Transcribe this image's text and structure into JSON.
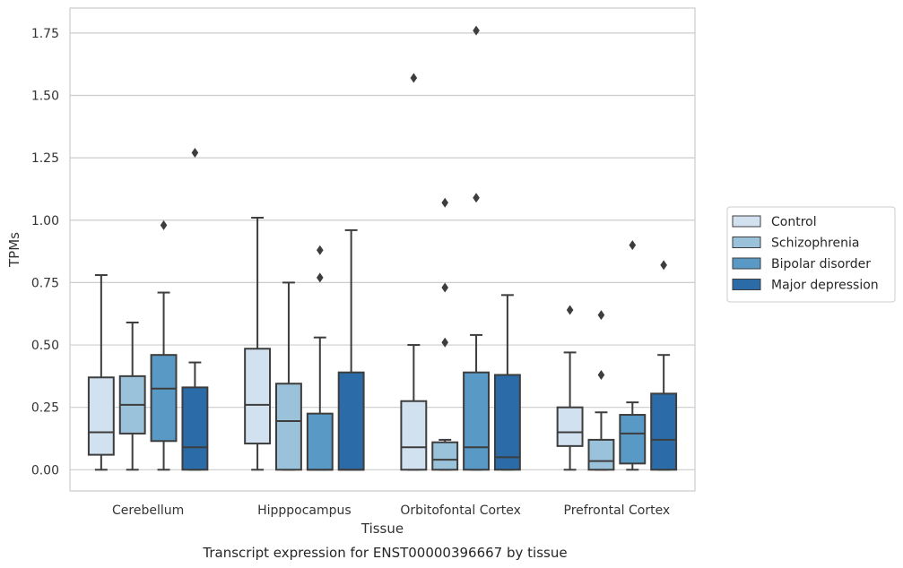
{
  "chart_data": {
    "type": "boxplot",
    "xlabel": "Tissue",
    "ylabel": "TPMs",
    "caption": "Transcript expression for ENST00000396667 by tissue",
    "ylim": [
      -0.085,
      1.85
    ],
    "yticks": [
      "0.00",
      "0.25",
      "0.50",
      "0.75",
      "1.00",
      "1.25",
      "1.50",
      "1.75"
    ],
    "grid": "horizontal",
    "legend_position": "right",
    "categories": [
      "Cerebellum",
      "Hipppocampus",
      "Orbitofontal Cortex",
      "Prefrontal Cortex"
    ],
    "series": [
      {
        "name": "Control",
        "color": "#d2e1f0",
        "boxes": [
          {
            "whislo": 0.0,
            "q1": 0.06,
            "med": 0.15,
            "q3": 0.37,
            "whishi": 0.78,
            "fliers": []
          },
          {
            "whislo": 0.0,
            "q1": 0.105,
            "med": 0.26,
            "q3": 0.485,
            "whishi": 1.01,
            "fliers": []
          },
          {
            "whislo": 0.0,
            "q1": 0.0,
            "med": 0.09,
            "q3": 0.275,
            "whishi": 0.5,
            "fliers": [
              1.57
            ]
          },
          {
            "whislo": 0.0,
            "q1": 0.095,
            "med": 0.15,
            "q3": 0.25,
            "whishi": 0.47,
            "fliers": [
              0.64
            ]
          }
        ]
      },
      {
        "name": "Schizophrenia",
        "color": "#9bc2db",
        "boxes": [
          {
            "whislo": 0.0,
            "q1": 0.145,
            "med": 0.26,
            "q3": 0.375,
            "whishi": 0.59,
            "fliers": []
          },
          {
            "whislo": 0.0,
            "q1": 0.0,
            "med": 0.195,
            "q3": 0.345,
            "whishi": 0.75,
            "fliers": []
          },
          {
            "whislo": 0.0,
            "q1": 0.0,
            "med": 0.04,
            "q3": 0.11,
            "whishi": 0.12,
            "fliers": [
              0.51,
              0.73,
              1.07
            ]
          },
          {
            "whislo": 0.0,
            "q1": 0.0,
            "med": 0.035,
            "q3": 0.12,
            "whishi": 0.23,
            "fliers": [
              0.38,
              0.62
            ]
          }
        ]
      },
      {
        "name": "Bipolar disorder",
        "color": "#5899c6",
        "boxes": [
          {
            "whislo": 0.0,
            "q1": 0.115,
            "med": 0.325,
            "q3": 0.46,
            "whishi": 0.71,
            "fliers": [
              0.98
            ]
          },
          {
            "whislo": 0.0,
            "q1": 0.0,
            "med": 0.0,
            "q3": 0.225,
            "whishi": 0.53,
            "fliers": [
              0.77,
              0.88
            ]
          },
          {
            "whislo": 0.0,
            "q1": 0.0,
            "med": 0.09,
            "q3": 0.39,
            "whishi": 0.54,
            "fliers": [
              1.09,
              1.76
            ]
          },
          {
            "whislo": 0.0,
            "q1": 0.025,
            "med": 0.145,
            "q3": 0.22,
            "whishi": 0.27,
            "fliers": [
              0.9
            ]
          }
        ]
      },
      {
        "name": "Major depression",
        "color": "#2b6ca8",
        "boxes": [
          {
            "whislo": 0.0,
            "q1": 0.0,
            "med": 0.09,
            "q3": 0.33,
            "whishi": 0.43,
            "fliers": [
              1.27
            ]
          },
          {
            "whislo": 0.0,
            "q1": 0.0,
            "med": 0.0,
            "q3": 0.39,
            "whishi": 0.96,
            "fliers": []
          },
          {
            "whislo": 0.0,
            "q1": 0.0,
            "med": 0.05,
            "q3": 0.38,
            "whishi": 0.7,
            "fliers": []
          },
          {
            "whislo": 0.0,
            "q1": 0.0,
            "med": 0.12,
            "q3": 0.305,
            "whishi": 0.46,
            "fliers": [
              0.82
            ]
          }
        ]
      }
    ]
  }
}
